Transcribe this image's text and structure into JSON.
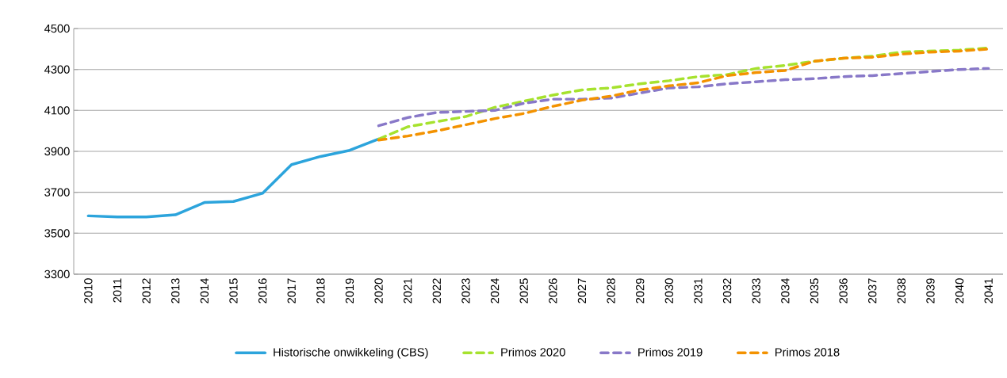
{
  "chart_data": {
    "type": "line",
    "categories": [
      "2010",
      "2011",
      "2012",
      "2013",
      "2014",
      "2015",
      "2016",
      "2017",
      "2018",
      "2019",
      "2020",
      "2021",
      "2022",
      "2023",
      "2024",
      "2025",
      "2026",
      "2027",
      "2028",
      "2029",
      "2030",
      "2031",
      "2032",
      "2033",
      "2034",
      "2035",
      "2036",
      "2037",
      "2038",
      "2039",
      "2040",
      "2041"
    ],
    "series": [
      {
        "name": "Historische onwikkeling (CBS)",
        "color": "#2ca4dc",
        "line_style": "solid",
        "values": [
          3585,
          3580,
          3580,
          3590,
          3650,
          3655,
          3695,
          3835,
          3875,
          3905,
          3960,
          null,
          null,
          null,
          null,
          null,
          null,
          null,
          null,
          null,
          null,
          null,
          null,
          null,
          null,
          null,
          null,
          null,
          null,
          null,
          null,
          null
        ]
      },
      {
        "name": "Primos 2020",
        "color": "#a6e22e",
        "line_style": "dashed",
        "values": [
          null,
          null,
          null,
          null,
          null,
          null,
          null,
          null,
          null,
          null,
          3960,
          4020,
          4045,
          4070,
          4115,
          4145,
          4175,
          4200,
          4210,
          4230,
          4245,
          4265,
          4275,
          4305,
          4320,
          4340,
          4355,
          4365,
          4385,
          4390,
          4395,
          4405
        ]
      },
      {
        "name": "Primos 2019",
        "color": "#8878c8",
        "line_style": "dashed",
        "values": [
          null,
          null,
          null,
          null,
          null,
          null,
          null,
          null,
          null,
          null,
          4025,
          4065,
          4090,
          4095,
          4100,
          4135,
          4155,
          4155,
          4160,
          4185,
          4210,
          4215,
          4230,
          4240,
          4250,
          4255,
          4265,
          4270,
          4280,
          4290,
          4300,
          4305
        ]
      },
      {
        "name": "Primos 2018",
        "color": "#f39200",
        "line_style": "dashed",
        "values": [
          null,
          null,
          null,
          null,
          null,
          null,
          null,
          null,
          null,
          null,
          3955,
          3975,
          4000,
          4030,
          4060,
          4085,
          4120,
          4150,
          4170,
          4200,
          4220,
          4235,
          4270,
          4285,
          4295,
          4340,
          4355,
          4360,
          4375,
          4385,
          4390,
          4400
        ]
      }
    ],
    "ylim": [
      3300,
      4500
    ],
    "yticks": [
      3300,
      3500,
      3700,
      3900,
      4100,
      4300,
      4500
    ],
    "grid": "y",
    "legend": "bottom"
  }
}
